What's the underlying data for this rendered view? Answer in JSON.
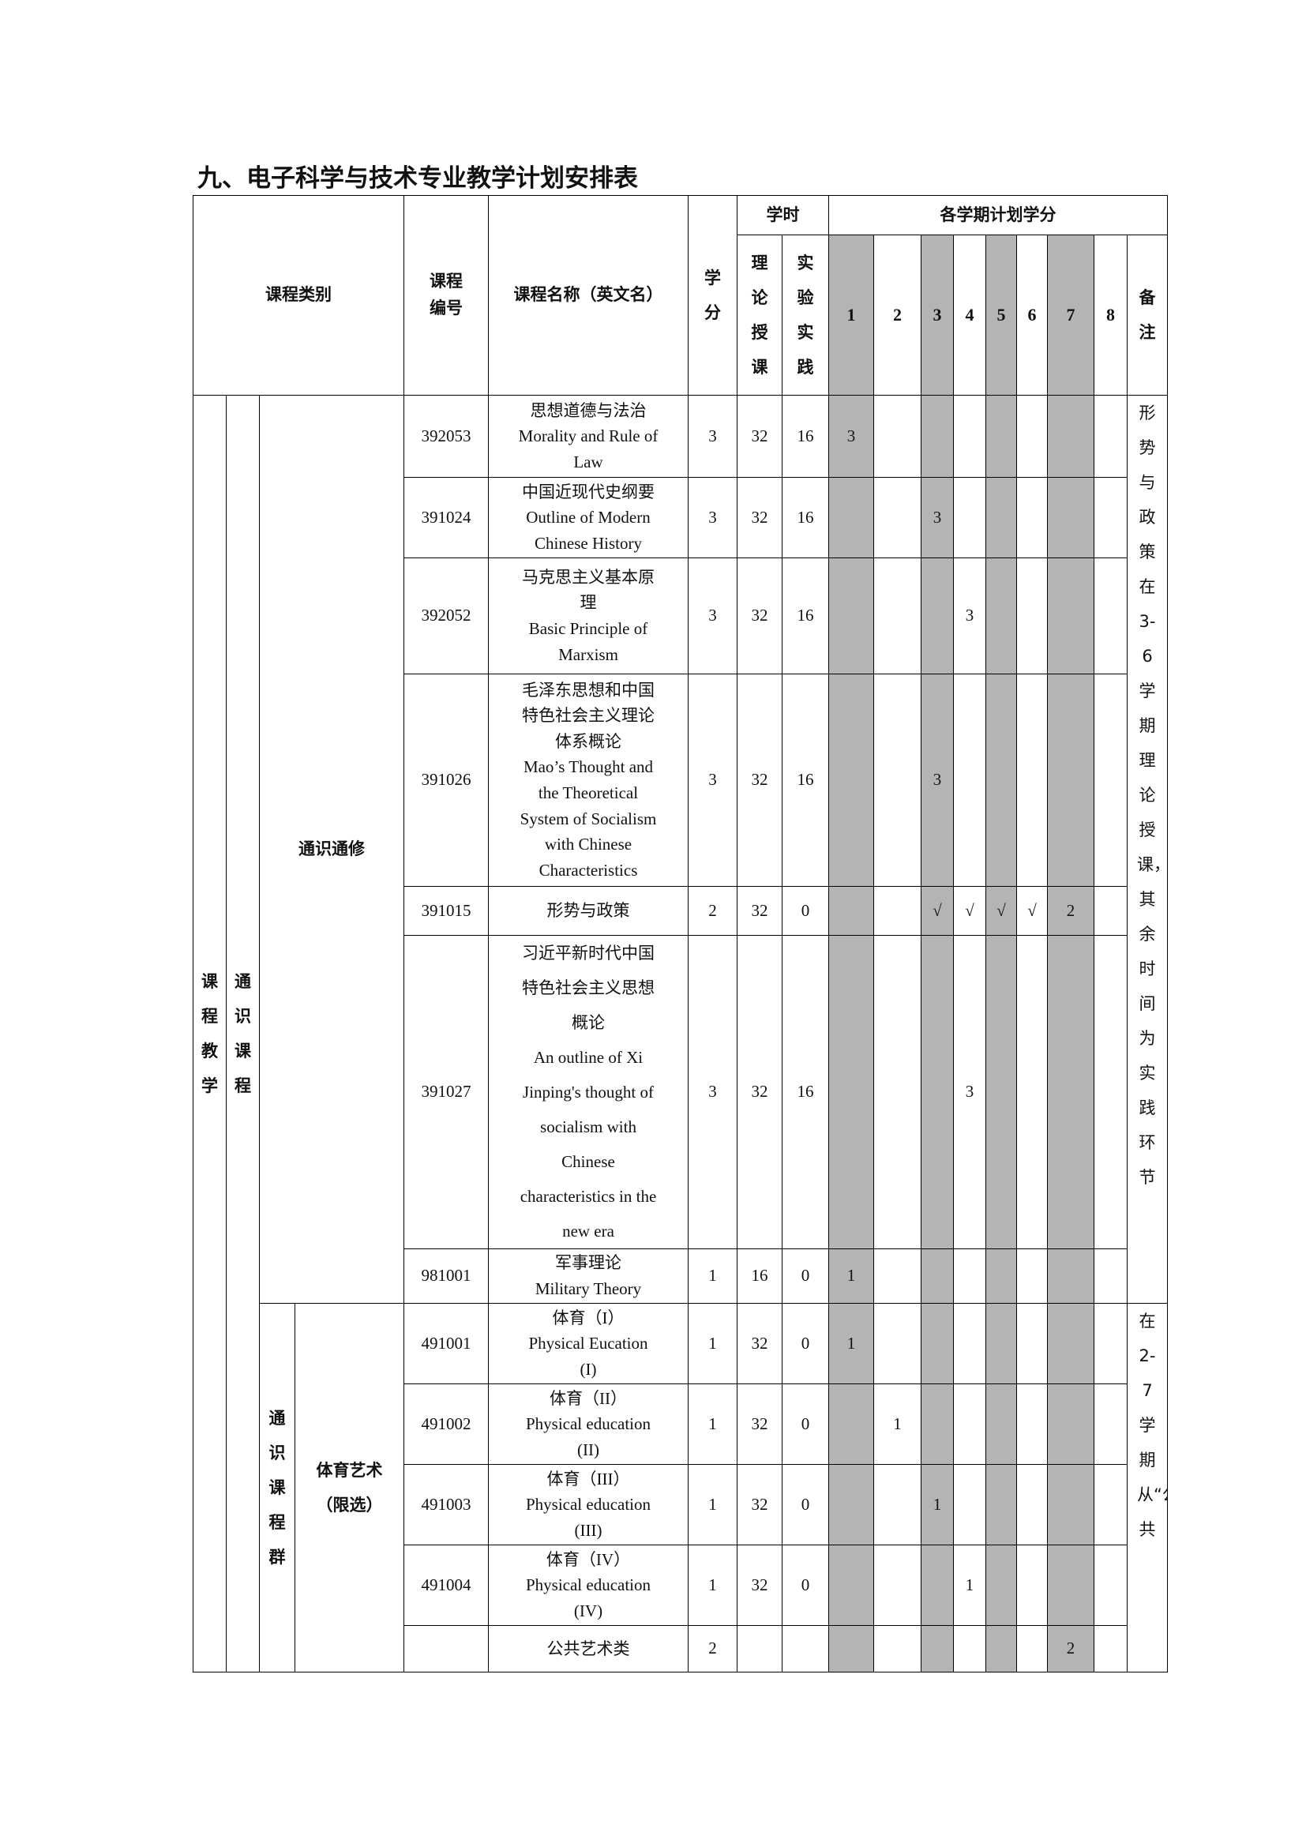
{
  "title": "九、电子科学与技术专业教学计划安排表",
  "header": {
    "category": "课程类别",
    "code": "课程\n编号",
    "name": "课程名称（英文名）",
    "credit": "学\n分",
    "hours": "学时",
    "hours_theory": "理论授课",
    "hours_practice": "实验实践",
    "semester_credits": "各学期计划学分",
    "semesters": [
      "1",
      "2",
      "3",
      "4",
      "5",
      "6",
      "7",
      "8"
    ],
    "remarks": "备\n注"
  },
  "shaded_semesters": [
    1,
    3,
    5,
    7
  ],
  "shade_color": "#b4b4b4",
  "categories": {
    "level1": "课程教学",
    "level2": "通识课程",
    "group_a": "通识通修",
    "group_b_outer": "通识课程群",
    "group_b_inner": "体育艺术\n（限选）"
  },
  "notes": {
    "group_a": "形势与政策在3-6学期理论授课，其余时间为实践环节",
    "group_b": "在2-7学期从“公共"
  },
  "rows": [
    {
      "code": "392053",
      "name": "思想道德与法治\nMorality and Rule of\nLaw",
      "credit": "3",
      "theory": "32",
      "practice": "16",
      "sem": [
        "3",
        "",
        "",
        "",
        "",
        "",
        "",
        ""
      ]
    },
    {
      "code": "391024",
      "name": "中国近现代史纲要\nOutline of Modern\nChinese History",
      "credit": "3",
      "theory": "32",
      "practice": "16",
      "sem": [
        "",
        "",
        "3",
        "",
        "",
        "",
        "",
        ""
      ]
    },
    {
      "code": "392052",
      "name": "马克思主义基本原\n理\nBasic Principle of\nMarxism",
      "credit": "3",
      "theory": "32",
      "practice": "16",
      "sem": [
        "",
        "",
        "",
        "3",
        "",
        "",
        "",
        ""
      ]
    },
    {
      "code": "391026",
      "name": "毛泽东思想和中国\n特色社会主义理论\n体系概论\nMao’s Thought and\nthe Theoretical\nSystem of Socialism\nwith Chinese\nCharacteristics",
      "credit": "3",
      "theory": "32",
      "practice": "16",
      "sem": [
        "",
        "",
        "3",
        "",
        "",
        "",
        "",
        ""
      ]
    },
    {
      "code": "391015",
      "name": "形势与政策",
      "credit": "2",
      "theory": "32",
      "practice": "0",
      "sem": [
        "",
        "",
        "√",
        "√",
        "√",
        "√",
        "2",
        ""
      ]
    },
    {
      "code": "391027",
      "name": "习近平新时代中国\n特色社会主义思想\n概论\nAn outline of Xi\nJinping's thought of\nsocialism with\nChinese\ncharacteristics in the\nnew era",
      "credit": "3",
      "theory": "32",
      "practice": "16",
      "sem": [
        "",
        "",
        "",
        "3",
        "",
        "",
        "",
        ""
      ]
    },
    {
      "code": "981001",
      "name": "军事理论\nMilitary Theory",
      "credit": "1",
      "theory": "16",
      "practice": "0",
      "sem": [
        "1",
        "",
        "",
        "",
        "",
        "",
        "",
        ""
      ]
    },
    {
      "code": "491001",
      "name": "体育（I）\nPhysical Eucation\n(I)",
      "credit": "1",
      "theory": "32",
      "practice": "0",
      "sem": [
        "1",
        "",
        "",
        "",
        "",
        "",
        "",
        ""
      ]
    },
    {
      "code": "491002",
      "name": "体育（II）\nPhysical education\n(II)",
      "credit": "1",
      "theory": "32",
      "practice": "0",
      "sem": [
        "",
        "1",
        "",
        "",
        "",
        "",
        "",
        ""
      ]
    },
    {
      "code": "491003",
      "name": "体育（III）\nPhysical education\n(III)",
      "credit": "1",
      "theory": "32",
      "practice": "0",
      "sem": [
        "",
        "",
        "1",
        "",
        "",
        "",
        "",
        ""
      ]
    },
    {
      "code": "491004",
      "name": "体育（IV）\nPhysical education\n(IV)",
      "credit": "1",
      "theory": "32",
      "practice": "0",
      "sem": [
        "",
        "",
        "",
        "1",
        "",
        "",
        "",
        ""
      ]
    },
    {
      "code": "",
      "name": "公共艺术类",
      "credit": "2",
      "theory": "",
      "practice": "",
      "sem": [
        "",
        "",
        "",
        "",
        "",
        "",
        "2",
        ""
      ]
    }
  ]
}
